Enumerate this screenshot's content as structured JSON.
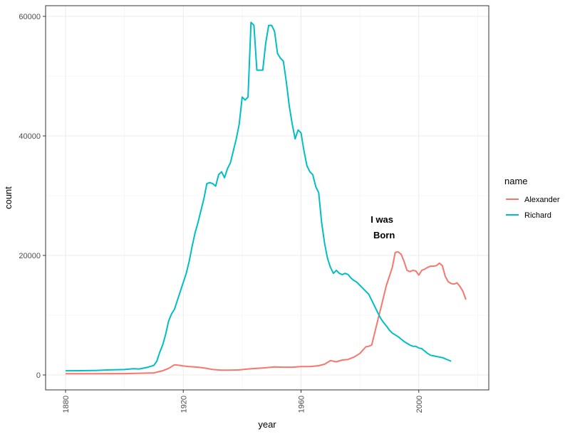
{
  "chart_data": {
    "type": "line",
    "title": "",
    "xlabel": "year",
    "ylabel": "count",
    "xlim": [
      1880,
      2017
    ],
    "ylim": [
      0,
      60000
    ],
    "x_ticks": [
      1880,
      1920,
      1960,
      2000
    ],
    "y_ticks": [
      0,
      20000,
      40000,
      60000
    ],
    "x_tick_labels": [
      "1880",
      "1920",
      "1960",
      "2000"
    ],
    "y_tick_labels": [
      "0",
      "20000",
      "40000",
      "60000"
    ],
    "grid": true,
    "legend": {
      "title": "name",
      "position": "right"
    },
    "annotation": {
      "lines": [
        "I was",
        "Born"
      ],
      "x": 1987.5,
      "y": 25500
    },
    "series": [
      {
        "name": "Alexander",
        "color": "#F8766D",
        "points": [
          [
            1880,
            200
          ],
          [
            1890,
            210
          ],
          [
            1900,
            230
          ],
          [
            1910,
            350
          ],
          [
            1913,
            700
          ],
          [
            1915,
            1100
          ],
          [
            1917,
            1700
          ],
          [
            1919,
            1600
          ],
          [
            1920,
            1500
          ],
          [
            1922,
            1400
          ],
          [
            1925,
            1300
          ],
          [
            1928,
            1100
          ],
          [
            1930,
            900
          ],
          [
            1933,
            800
          ],
          [
            1936,
            800
          ],
          [
            1939,
            850
          ],
          [
            1942,
            1000
          ],
          [
            1945,
            1100
          ],
          [
            1948,
            1200
          ],
          [
            1951,
            1350
          ],
          [
            1954,
            1300
          ],
          [
            1957,
            1300
          ],
          [
            1960,
            1400
          ],
          [
            1963,
            1400
          ],
          [
            1966,
            1550
          ],
          [
            1968,
            1800
          ],
          [
            1970,
            2400
          ],
          [
            1972,
            2200
          ],
          [
            1974,
            2500
          ],
          [
            1976,
            2600
          ],
          [
            1978,
            3000
          ],
          [
            1980,
            3600
          ],
          [
            1982,
            4700
          ],
          [
            1983,
            4800
          ],
          [
            1984,
            5000
          ],
          [
            1985,
            7000
          ],
          [
            1986,
            9000
          ],
          [
            1987,
            11000
          ],
          [
            1988,
            13000
          ],
          [
            1989,
            15000
          ],
          [
            1990,
            16500
          ],
          [
            1991,
            18000
          ],
          [
            1992,
            20500
          ],
          [
            1993,
            20600
          ],
          [
            1994,
            20200
          ],
          [
            1995,
            19000
          ],
          [
            1996,
            17500
          ],
          [
            1997,
            17300
          ],
          [
            1998,
            17500
          ],
          [
            1999,
            17400
          ],
          [
            2000,
            16700
          ],
          [
            2001,
            17500
          ],
          [
            2002,
            17700
          ],
          [
            2003,
            18000
          ],
          [
            2004,
            18200
          ],
          [
            2005,
            18200
          ],
          [
            2006,
            18300
          ],
          [
            2007,
            18700
          ],
          [
            2008,
            18300
          ],
          [
            2009,
            16500
          ],
          [
            2010,
            15600
          ],
          [
            2011,
            15300
          ],
          [
            2012,
            15200
          ],
          [
            2013,
            15400
          ],
          [
            2014,
            14800
          ],
          [
            2015,
            14000
          ],
          [
            2016,
            12600
          ]
        ]
      },
      {
        "name": "Richard",
        "color": "#00BFC4",
        "points": [
          [
            1880,
            700
          ],
          [
            1885,
            720
          ],
          [
            1890,
            750
          ],
          [
            1895,
            850
          ],
          [
            1900,
            900
          ],
          [
            1903,
            1050
          ],
          [
            1905,
            1000
          ],
          [
            1908,
            1300
          ],
          [
            1910,
            1600
          ],
          [
            1911,
            2300
          ],
          [
            1912,
            3800
          ],
          [
            1913,
            5000
          ],
          [
            1914,
            6800
          ],
          [
            1915,
            9000
          ],
          [
            1916,
            10200
          ],
          [
            1917,
            11000
          ],
          [
            1918,
            12500
          ],
          [
            1919,
            14000
          ],
          [
            1920,
            15500
          ],
          [
            1921,
            17000
          ],
          [
            1922,
            19000
          ],
          [
            1923,
            21500
          ],
          [
            1924,
            23800
          ],
          [
            1925,
            25500
          ],
          [
            1926,
            27500
          ],
          [
            1927,
            29500
          ],
          [
            1928,
            32000
          ],
          [
            1929,
            32200
          ],
          [
            1930,
            32000
          ],
          [
            1931,
            31600
          ],
          [
            1932,
            33500
          ],
          [
            1933,
            34000
          ],
          [
            1934,
            33000
          ],
          [
            1935,
            34500
          ],
          [
            1936,
            35500
          ],
          [
            1937,
            37500
          ],
          [
            1938,
            39500
          ],
          [
            1939,
            42000
          ],
          [
            1940,
            46500
          ],
          [
            1941,
            46000
          ],
          [
            1942,
            46500
          ],
          [
            1943,
            59000
          ],
          [
            1944,
            58500
          ],
          [
            1945,
            51000
          ],
          [
            1946,
            51000
          ],
          [
            1947,
            51000
          ],
          [
            1948,
            55500
          ],
          [
            1949,
            58500
          ],
          [
            1950,
            58500
          ],
          [
            1951,
            57500
          ],
          [
            1952,
            53800
          ],
          [
            1953,
            53000
          ],
          [
            1954,
            52500
          ],
          [
            1955,
            49000
          ],
          [
            1956,
            45000
          ],
          [
            1957,
            42000
          ],
          [
            1958,
            39500
          ],
          [
            1959,
            41000
          ],
          [
            1960,
            40500
          ],
          [
            1961,
            37500
          ],
          [
            1962,
            35000
          ],
          [
            1963,
            34000
          ],
          [
            1964,
            33500
          ],
          [
            1965,
            31500
          ],
          [
            1966,
            30500
          ],
          [
            1967,
            25500
          ],
          [
            1968,
            22000
          ],
          [
            1969,
            19500
          ],
          [
            1970,
            18000
          ],
          [
            1971,
            17000
          ],
          [
            1972,
            17500
          ],
          [
            1973,
            17000
          ],
          [
            1974,
            16800
          ],
          [
            1975,
            17000
          ],
          [
            1976,
            16800
          ],
          [
            1977,
            16200
          ],
          [
            1978,
            15800
          ],
          [
            1979,
            15500
          ],
          [
            1980,
            15000
          ],
          [
            1981,
            14500
          ],
          [
            1982,
            14000
          ],
          [
            1983,
            13500
          ],
          [
            1984,
            12500
          ],
          [
            1985,
            11500
          ],
          [
            1986,
            10500
          ],
          [
            1987,
            9500
          ],
          [
            1988,
            8800
          ],
          [
            1989,
            8200
          ],
          [
            1990,
            7500
          ],
          [
            1991,
            7000
          ],
          [
            1992,
            6700
          ],
          [
            1993,
            6400
          ],
          [
            1994,
            6000
          ],
          [
            1995,
            5600
          ],
          [
            1996,
            5300
          ],
          [
            1997,
            5000
          ],
          [
            1998,
            4800
          ],
          [
            1999,
            4800
          ],
          [
            2000,
            4500
          ],
          [
            2001,
            4400
          ],
          [
            2002,
            4000
          ],
          [
            2003,
            3600
          ],
          [
            2004,
            3300
          ],
          [
            2005,
            3200
          ],
          [
            2006,
            3100
          ],
          [
            2007,
            3000
          ],
          [
            2008,
            2900
          ],
          [
            2009,
            2700
          ],
          [
            2010,
            2500
          ],
          [
            2011,
            2300
          ]
        ]
      }
    ]
  }
}
